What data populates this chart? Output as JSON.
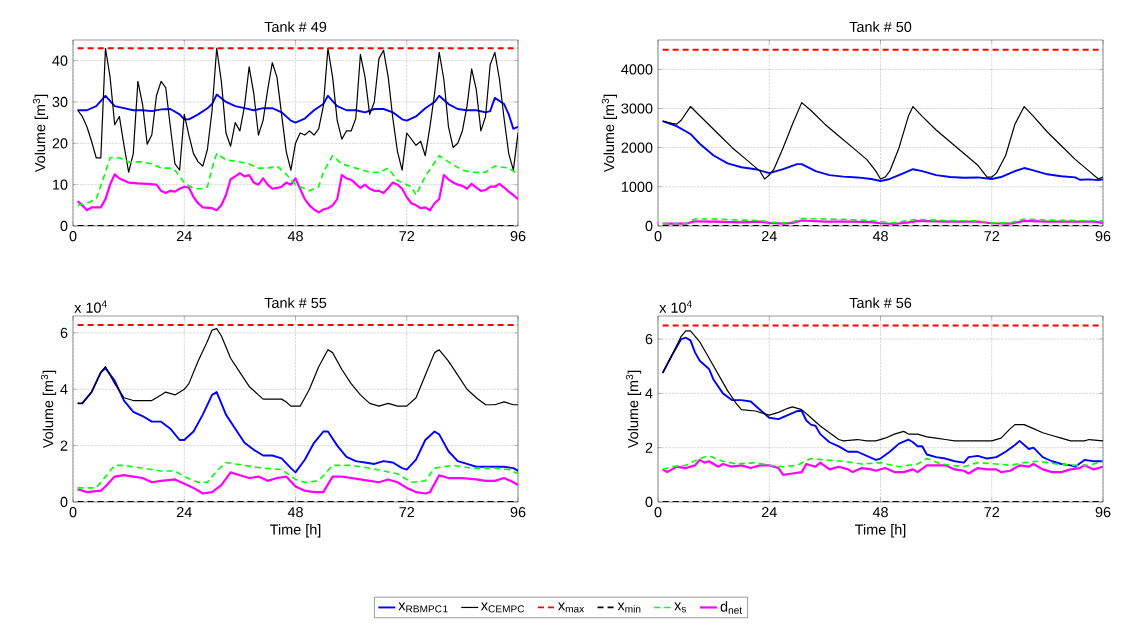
{
  "chart_data": [
    {
      "type": "line",
      "title": "Tank # 49",
      "ylabel": "Volume [m$^{3}$]",
      "xlim": [
        0,
        96
      ],
      "ylim": [
        0,
        45
      ],
      "xticks": [
        0,
        24,
        48,
        72,
        96
      ],
      "yticks": [
        0,
        10,
        20,
        30,
        40
      ],
      "grid": true,
      "series": [
        {
          "color": "#0000ff",
          "line_style": "solid",
          "x": [
            1,
            3,
            5,
            7,
            9,
            11,
            13,
            15,
            17,
            19,
            21,
            23,
            24,
            25,
            27,
            29,
            30,
            31,
            33,
            35,
            37,
            39,
            41,
            43,
            45,
            47,
            48,
            50,
            52,
            54,
            55,
            57,
            59,
            61,
            63,
            65,
            67,
            69,
            71,
            72,
            74,
            76,
            78,
            79,
            81,
            83,
            85,
            87,
            89,
            90,
            91,
            93,
            94,
            95,
            96
          ],
          "values": [
            28,
            28,
            29,
            31.5,
            29,
            28.5,
            28,
            28,
            27.8,
            28.2,
            28.3,
            27,
            25.8,
            25.8,
            27,
            28.5,
            29.5,
            31.8,
            30,
            29,
            28.5,
            28,
            28.5,
            28.5,
            27.5,
            25.5,
            25,
            26,
            28,
            29.5,
            31.5,
            29,
            28,
            28,
            27.5,
            28.3,
            28.3,
            27.5,
            25.8,
            25.5,
            26.5,
            28.5,
            30,
            31.5,
            29.5,
            28.3,
            28,
            28,
            27.5,
            27.8,
            31,
            29.5,
            27,
            23.5,
            24
          ]
        },
        {
          "color": "#000000",
          "line_style": "solid",
          "x": [
            1,
            2,
            3,
            4,
            5,
            6,
            7,
            8,
            9,
            10,
            11,
            12,
            13,
            14,
            15,
            16,
            17,
            18,
            19,
            20,
            21,
            22,
            23,
            24,
            25,
            26,
            27,
            28,
            29,
            30,
            31,
            32,
            33,
            34,
            35,
            36,
            37,
            38,
            39,
            40,
            41,
            42,
            43,
            44,
            45,
            46,
            47,
            48,
            49,
            50,
            51,
            52,
            53,
            54,
            55,
            56,
            57,
            58,
            59,
            60,
            61,
            62,
            63,
            64,
            65,
            66,
            67,
            68,
            69,
            70,
            71,
            72,
            73,
            74,
            75,
            76,
            77,
            78,
            79,
            80,
            81,
            82,
            83,
            84,
            85,
            86,
            87,
            88,
            89,
            90,
            91,
            92,
            93,
            94,
            95,
            96
          ],
          "values": [
            28,
            26.5,
            24,
            20.5,
            16.5,
            16.5,
            43,
            36,
            24.5,
            26.5,
            19.5,
            13,
            17.5,
            35,
            29.5,
            19.8,
            22,
            31.5,
            35,
            33.5,
            24,
            15,
            13.5,
            27,
            22,
            17.5,
            15.5,
            14.5,
            18.5,
            28,
            43,
            35,
            22.5,
            19.3,
            25,
            23,
            29,
            38.5,
            32,
            22,
            25.5,
            33,
            39.5,
            36,
            27,
            18,
            13.5,
            20,
            22.5,
            22,
            23,
            22,
            23.5,
            29,
            43,
            36,
            25.5,
            21,
            23,
            23,
            26,
            41.5,
            36,
            27,
            30,
            40.5,
            42.5,
            36,
            26,
            18,
            13.5,
            22.5,
            21,
            19.5,
            20.5,
            17,
            24,
            32,
            42,
            35.5,
            24,
            19,
            20,
            23,
            29,
            38,
            33,
            23,
            26.5,
            39,
            42,
            35.5,
            26,
            17.5,
            13.5,
            22.5
          ]
        },
        {
          "color": "#ff0000",
          "line_style": "dashed",
          "x": [
            1,
            96
          ],
          "values": [
            43,
            43
          ]
        },
        {
          "color": "#000000",
          "line_style": "dashed",
          "x": [
            1,
            96
          ],
          "values": [
            0,
            0
          ]
        },
        {
          "color": "#00ff00",
          "line_style": "dashed",
          "x": [
            1,
            3,
            5,
            7,
            8,
            10,
            12,
            15,
            17,
            19,
            21,
            22,
            24,
            26,
            28,
            29,
            30,
            31,
            33,
            36,
            38,
            40,
            42,
            44,
            46,
            48,
            51,
            53,
            54,
            56,
            58,
            61,
            64,
            66,
            68,
            70,
            72,
            73,
            74,
            76,
            79,
            81,
            84,
            86,
            89,
            91,
            94,
            96
          ],
          "values": [
            5,
            5.5,
            6.5,
            13,
            16.5,
            16.5,
            15.5,
            15.5,
            15,
            14,
            14,
            13.5,
            10.5,
            9,
            9,
            9.5,
            14,
            17.5,
            16,
            15.5,
            15,
            14,
            14,
            14.5,
            12.5,
            10,
            8.5,
            9.5,
            13,
            17,
            15,
            14,
            13,
            13,
            14,
            11,
            10,
            9.5,
            7.5,
            12,
            17,
            15.5,
            13.5,
            13,
            13,
            14.5,
            14,
            12.5
          ]
        },
        {
          "color": "#ff00ff",
          "line_style": "solid",
          "x": [
            1,
            2,
            3,
            4,
            6,
            7,
            8,
            9,
            10,
            12,
            14,
            16,
            18,
            19,
            20,
            21,
            22,
            23,
            24,
            25,
            26,
            27,
            28,
            30,
            31,
            32,
            33,
            34,
            35,
            36,
            37,
            38,
            39,
            40,
            41,
            42,
            43,
            44,
            45,
            46,
            47,
            48,
            49,
            50,
            51,
            52,
            53,
            54,
            55,
            56,
            57,
            58,
            59,
            60,
            61,
            62,
            63,
            64,
            65,
            66,
            67,
            68,
            69,
            70,
            71,
            72,
            73,
            74,
            75,
            76,
            77,
            78,
            79,
            80,
            81,
            82,
            83,
            84,
            85,
            86,
            87,
            88,
            89,
            90,
            91,
            92,
            93,
            94,
            95,
            96
          ],
          "values": [
            6,
            5,
            3.8,
            4.5,
            4.5,
            6.5,
            10,
            12.5,
            11.5,
            10.5,
            10.3,
            10.2,
            10,
            8.5,
            8,
            8.5,
            8.3,
            9,
            9.5,
            9.3,
            7,
            5.5,
            4.5,
            4.3,
            3.8,
            5,
            7.5,
            11.3,
            12,
            12.8,
            12,
            12.3,
            10.5,
            10,
            11.5,
            10,
            9,
            9.2,
            9.5,
            10.5,
            10,
            11.5,
            9,
            6.5,
            5,
            4,
            3.3,
            4,
            4.3,
            5,
            6.5,
            12.3,
            11.5,
            11.2,
            10.2,
            9.2,
            10,
            9,
            8.5,
            8.5,
            8,
            9.2,
            10.5,
            10,
            9,
            7,
            5.5,
            5,
            4.3,
            4.5,
            3.8,
            5.5,
            6.5,
            12.3,
            11.3,
            10.5,
            10,
            9.7,
            9,
            10.2,
            9.3,
            8.5,
            8.7,
            9.5,
            9.5,
            10.2,
            9.3,
            8.3,
            7.5,
            6.5
          ]
        }
      ]
    },
    {
      "type": "line",
      "title": "Tank # 50",
      "ylabel": "Volume [m$^{3}$]",
      "xlim": [
        0,
        96
      ],
      "ylim": [
        0,
        4750
      ],
      "xticks": [
        0,
        24,
        48,
        72,
        96
      ],
      "yticks": [
        0,
        1000,
        2000,
        3000,
        4000
      ],
      "grid": true,
      "series": [
        {
          "color": "#0000ff",
          "line_style": "solid",
          "x": [
            1,
            4,
            7,
            9,
            12,
            15,
            18,
            21,
            24,
            27,
            30,
            31,
            34,
            37,
            40,
            43,
            46,
            48,
            50,
            53,
            55,
            57,
            60,
            63,
            66,
            69,
            72,
            74,
            77,
            79,
            81,
            84,
            87,
            90,
            91,
            93,
            95,
            96
          ],
          "values": [
            2680,
            2550,
            2350,
            2100,
            1800,
            1600,
            1500,
            1450,
            1350,
            1450,
            1580,
            1580,
            1400,
            1300,
            1260,
            1240,
            1200,
            1150,
            1200,
            1350,
            1450,
            1400,
            1300,
            1250,
            1230,
            1240,
            1200,
            1250,
            1400,
            1480,
            1420,
            1320,
            1270,
            1240,
            1180,
            1190,
            1170,
            1190
          ]
        },
        {
          "color": "#000000",
          "line_style": "solid",
          "x": [
            1,
            3,
            4,
            5,
            7,
            10,
            13,
            16,
            19,
            22,
            23,
            24,
            25,
            27,
            29,
            31,
            33,
            36,
            39,
            42,
            45,
            47,
            48,
            49,
            50,
            52,
            54,
            55,
            57,
            60,
            63,
            66,
            69,
            71,
            72,
            73,
            75,
            77,
            79,
            81,
            84,
            87,
            90,
            93,
            95,
            96
          ],
          "values": [
            2680,
            2620,
            2600,
            2700,
            3050,
            2700,
            2350,
            2000,
            1700,
            1400,
            1200,
            1300,
            1450,
            2000,
            2600,
            3150,
            2950,
            2600,
            2300,
            2000,
            1700,
            1400,
            1200,
            1250,
            1400,
            2000,
            2800,
            3050,
            2800,
            2450,
            2150,
            1850,
            1550,
            1250,
            1250,
            1350,
            1800,
            2600,
            3050,
            2800,
            2400,
            2050,
            1700,
            1400,
            1200,
            1250
          ]
        },
        {
          "color": "#ff0000",
          "line_style": "dashed",
          "x": [
            1,
            96
          ],
          "values": [
            4500,
            4500
          ]
        },
        {
          "color": "#000000",
          "line_style": "dashed",
          "x": [
            1,
            96
          ],
          "values": [
            0,
            0
          ]
        },
        {
          "color": "#00ff00",
          "line_style": "dashed",
          "x": [
            1,
            6,
            8,
            12,
            18,
            22,
            24,
            27,
            29,
            31,
            36,
            42,
            46,
            48,
            51,
            54,
            56,
            62,
            69,
            72,
            76,
            79,
            84,
            90,
            94,
            96
          ],
          "values": [
            60,
            60,
            180,
            180,
            150,
            140,
            100,
            80,
            100,
            190,
            180,
            160,
            140,
            110,
            80,
            140,
            170,
            140,
            130,
            80,
            80,
            180,
            150,
            140,
            130,
            130
          ]
        },
        {
          "color": "#ff00ff",
          "line_style": "solid",
          "x": [
            1,
            6,
            8,
            12,
            18,
            22,
            24,
            27,
            29,
            31,
            36,
            42,
            46,
            48,
            51,
            54,
            56,
            62,
            69,
            72,
            76,
            79,
            84,
            90,
            94,
            96
          ],
          "values": [
            60,
            60,
            120,
            110,
            90,
            110,
            80,
            60,
            80,
            140,
            110,
            110,
            100,
            70,
            50,
            90,
            130,
            110,
            110,
            70,
            60,
            130,
            110,
            110,
            110,
            80
          ]
        }
      ]
    },
    {
      "type": "line",
      "title": "Tank # 55",
      "xlabel": "Time [h]",
      "ylabel": "Volume [m$^{3}$]",
      "annotations": [
        "x 10$^{4}$"
      ],
      "xlim": [
        0,
        96
      ],
      "ylim": [
        0,
        6.6
      ],
      "xticks": [
        0,
        24,
        48,
        72,
        96
      ],
      "yticks": [
        0,
        2,
        4,
        6
      ],
      "grid": true,
      "series": [
        {
          "color": "#0000ff",
          "line_style": "solid",
          "x": [
            1,
            2,
            4,
            6,
            7,
            9,
            11,
            13,
            15,
            17,
            19,
            21,
            23,
            24,
            26,
            28,
            30,
            31,
            33,
            35,
            37,
            39,
            41,
            43,
            45,
            47,
            48,
            50,
            52,
            54,
            55,
            57,
            59,
            61,
            63,
            65,
            67,
            69,
            71,
            72,
            74,
            76,
            78,
            79,
            81,
            83,
            85,
            87,
            89,
            91,
            93,
            95,
            96
          ],
          "values": [
            3.5,
            3.5,
            3.9,
            4.6,
            4.75,
            4.3,
            3.6,
            3.2,
            3.05,
            2.85,
            2.85,
            2.6,
            2.2,
            2.2,
            2.5,
            3.1,
            3.8,
            3.9,
            3.1,
            2.6,
            2.1,
            1.85,
            1.65,
            1.65,
            1.55,
            1.2,
            1.05,
            1.5,
            2.1,
            2.5,
            2.5,
            2.0,
            1.6,
            1.45,
            1.4,
            1.35,
            1.45,
            1.4,
            1.2,
            1.15,
            1.5,
            2.2,
            2.5,
            2.4,
            1.8,
            1.45,
            1.35,
            1.25,
            1.25,
            1.25,
            1.25,
            1.2,
            1.1
          ]
        },
        {
          "color": "#000000",
          "line_style": "solid",
          "x": [
            1,
            2,
            4,
            6,
            7,
            9,
            11,
            13,
            15,
            17,
            19,
            20,
            22,
            24,
            25,
            27,
            29,
            30,
            31,
            32,
            34,
            36,
            38,
            40,
            41,
            43,
            45,
            46,
            47,
            49,
            51,
            53,
            55,
            56,
            58,
            60,
            62,
            64,
            66,
            68,
            70,
            72,
            74,
            76,
            78,
            79,
            81,
            83,
            85,
            87,
            89,
            91,
            93,
            95,
            96
          ],
          "values": [
            3.5,
            3.5,
            3.9,
            4.6,
            4.8,
            4.2,
            3.7,
            3.6,
            3.6,
            3.6,
            3.8,
            3.9,
            3.8,
            4.0,
            4.2,
            5.0,
            5.7,
            6.1,
            6.15,
            5.9,
            5.1,
            4.6,
            4.1,
            3.8,
            3.65,
            3.65,
            3.65,
            3.55,
            3.4,
            3.4,
            4.0,
            4.8,
            5.4,
            5.3,
            4.7,
            4.2,
            3.8,
            3.5,
            3.4,
            3.5,
            3.4,
            3.4,
            3.7,
            4.5,
            5.3,
            5.4,
            5.0,
            4.5,
            4.0,
            3.7,
            3.45,
            3.45,
            3.55,
            3.45,
            3.45
          ]
        },
        {
          "color": "#ff0000",
          "line_style": "dashed",
          "x": [
            1,
            96
          ],
          "values": [
            6.28,
            6.28
          ]
        },
        {
          "color": "#000000",
          "line_style": "dashed",
          "x": [
            1,
            96
          ],
          "values": [
            0,
            0
          ]
        },
        {
          "color": "#00ff00",
          "line_style": "dashed",
          "x": [
            1,
            5,
            7,
            9,
            11,
            15,
            19,
            22,
            24,
            27,
            29,
            31,
            33,
            37,
            41,
            45,
            48,
            50,
            53,
            56,
            60,
            64,
            67,
            70,
            73,
            76,
            78,
            82,
            86,
            91,
            94,
            96
          ],
          "values": [
            0.5,
            0.5,
            0.9,
            1.3,
            1.3,
            1.2,
            1.1,
            1.1,
            0.9,
            0.7,
            0.7,
            1.1,
            1.4,
            1.3,
            1.2,
            1.15,
            0.8,
            0.7,
            0.75,
            1.3,
            1.3,
            1.2,
            1.1,
            1.0,
            0.7,
            0.75,
            1.2,
            1.3,
            1.2,
            1.2,
            1.15,
            1.0
          ]
        },
        {
          "color": "#ff00ff",
          "line_style": "solid",
          "x": [
            1,
            3,
            6,
            7,
            9,
            11,
            13,
            15,
            17,
            19,
            22,
            24,
            26,
            28,
            30,
            32,
            34,
            36,
            38,
            40,
            42,
            44,
            46,
            48,
            50,
            52,
            54,
            56,
            58,
            60,
            62,
            64,
            66,
            68,
            70,
            72,
            74,
            76,
            77,
            79,
            81,
            84,
            87,
            89,
            91,
            93,
            95,
            96
          ],
          "values": [
            0.45,
            0.35,
            0.4,
            0.55,
            0.9,
            0.95,
            0.9,
            0.85,
            0.7,
            0.75,
            0.8,
            0.65,
            0.5,
            0.3,
            0.35,
            0.6,
            1.05,
            0.95,
            0.85,
            0.9,
            0.75,
            0.85,
            0.9,
            0.55,
            0.4,
            0.35,
            0.35,
            0.9,
            0.9,
            0.85,
            0.8,
            0.75,
            0.7,
            0.8,
            0.7,
            0.5,
            0.35,
            0.3,
            0.35,
            0.95,
            0.85,
            0.85,
            0.8,
            0.75,
            0.75,
            0.85,
            0.7,
            0.6
          ]
        }
      ]
    },
    {
      "type": "line",
      "title": "Tank # 56",
      "xlabel": "Time [h]",
      "ylabel": "Volume [m$^{3}$]",
      "annotations": [
        "x 10$^{4}$"
      ],
      "xlim": [
        0,
        96
      ],
      "ylim": [
        0,
        6.85
      ],
      "xticks": [
        0,
        24,
        48,
        72,
        96
      ],
      "yticks": [
        0,
        2,
        4,
        6
      ],
      "grid": true,
      "legend": "bottom",
      "series": [
        {
          "name": "x$_{RBMPC}$$_{1}$",
          "color": "#0000ff",
          "line_style": "solid",
          "x": [
            1,
            3,
            5,
            6,
            7,
            8,
            9,
            11,
            12,
            14,
            16,
            18,
            20,
            22,
            24,
            26,
            28,
            30,
            31,
            32,
            33,
            34,
            35,
            37,
            39,
            41,
            43,
            45,
            47,
            48,
            50,
            52,
            54,
            55,
            56,
            57,
            58,
            60,
            62,
            64,
            66,
            67,
            69,
            71,
            73,
            75,
            77,
            78,
            80,
            81,
            83,
            85,
            87,
            89,
            90,
            92,
            94,
            96
          ],
          "values": [
            4.75,
            5.4,
            6.0,
            6.05,
            5.95,
            5.5,
            5.2,
            4.9,
            4.5,
            4.0,
            3.75,
            3.75,
            3.7,
            3.4,
            3.1,
            3.05,
            3.2,
            3.35,
            3.35,
            3.0,
            2.85,
            2.8,
            2.5,
            2.2,
            2.05,
            1.85,
            1.85,
            1.7,
            1.55,
            1.6,
            1.85,
            2.15,
            2.3,
            2.2,
            2.05,
            2.05,
            1.75,
            1.65,
            1.6,
            1.5,
            1.45,
            1.65,
            1.7,
            1.6,
            1.65,
            1.85,
            2.1,
            2.25,
            1.95,
            2.0,
            1.65,
            1.5,
            1.4,
            1.35,
            1.3,
            1.55,
            1.5,
            1.5
          ]
        },
        {
          "name": "x$_{CEMPC}$",
          "color": "#000000",
          "line_style": "solid",
          "x": [
            1,
            3,
            5,
            6,
            7,
            9,
            11,
            13,
            15,
            17,
            18,
            21,
            23,
            24,
            26,
            28,
            29,
            31,
            33,
            35,
            37,
            39,
            40,
            43,
            45,
            47,
            49,
            51,
            53,
            54,
            56,
            58,
            60,
            62,
            64,
            66,
            68,
            70,
            72,
            74,
            76,
            77,
            79,
            81,
            83,
            85,
            87,
            89,
            92,
            93,
            96
          ],
          "values": [
            4.75,
            5.4,
            6.1,
            6.3,
            6.3,
            5.9,
            5.3,
            4.7,
            4.1,
            3.6,
            3.4,
            3.35,
            3.25,
            3.2,
            3.3,
            3.45,
            3.5,
            3.4,
            3.1,
            2.8,
            2.55,
            2.3,
            2.25,
            2.3,
            2.25,
            2.25,
            2.35,
            2.5,
            2.6,
            2.5,
            2.5,
            2.4,
            2.35,
            2.3,
            2.25,
            2.25,
            2.25,
            2.25,
            2.25,
            2.35,
            2.7,
            2.85,
            2.85,
            2.7,
            2.55,
            2.45,
            2.35,
            2.25,
            2.25,
            2.3,
            2.25
          ]
        },
        {
          "name": "x$_{max}$",
          "color": "#ff0000",
          "line_style": "dashed",
          "x": [
            1,
            96
          ],
          "values": [
            6.5,
            6.5
          ]
        },
        {
          "name": "x$_{min}$",
          "color": "#000000",
          "line_style": "dashed",
          "x": [
            1,
            96
          ],
          "values": [
            0,
            0
          ]
        },
        {
          "name": "x$_{s}$",
          "color": "#00ff00",
          "line_style": "dashed",
          "x": [
            1,
            3,
            6,
            9,
            11,
            14,
            17,
            21,
            24,
            27,
            30,
            33,
            36,
            40,
            44,
            48,
            52,
            56,
            58,
            61,
            66,
            69,
            73,
            76,
            79,
            82,
            86,
            90,
            93,
            96
          ],
          "values": [
            1.2,
            1.3,
            1.35,
            1.6,
            1.7,
            1.5,
            1.4,
            1.45,
            1.35,
            1.3,
            1.35,
            1.6,
            1.55,
            1.5,
            1.4,
            1.45,
            1.3,
            1.4,
            1.6,
            1.4,
            1.3,
            1.45,
            1.4,
            1.35,
            1.45,
            1.5,
            1.4,
            1.35,
            1.35,
            1.5
          ]
        },
        {
          "name": "d$_{net}$",
          "color": "#ff00ff",
          "line_style": "solid",
          "x": [
            1,
            2,
            4,
            6,
            8,
            9,
            10,
            11,
            13,
            14,
            16,
            18,
            20,
            22,
            24,
            26,
            27,
            29,
            31,
            32,
            34,
            35,
            37,
            39,
            41,
            42,
            44,
            46,
            47,
            49,
            51,
            53,
            55,
            56,
            58,
            60,
            62,
            64,
            66,
            67,
            69,
            71,
            73,
            74,
            76,
            78,
            80,
            81,
            83,
            85,
            87,
            89,
            91,
            92,
            94,
            96
          ],
          "values": [
            1.2,
            1.1,
            1.3,
            1.25,
            1.35,
            1.55,
            1.45,
            1.5,
            1.3,
            1.4,
            1.3,
            1.35,
            1.25,
            1.35,
            1.35,
            1.25,
            1.0,
            1.05,
            1.1,
            1.4,
            1.3,
            1.45,
            1.2,
            1.3,
            1.2,
            1.1,
            1.25,
            1.2,
            1.15,
            1.25,
            1.1,
            1.1,
            1.2,
            1.1,
            1.35,
            1.35,
            1.35,
            1.2,
            1.15,
            1.05,
            1.25,
            1.2,
            1.2,
            1.1,
            1.15,
            1.35,
            1.3,
            1.4,
            1.2,
            1.1,
            1.1,
            1.2,
            1.25,
            1.35,
            1.2,
            1.3
          ]
        }
      ]
    }
  ]
}
